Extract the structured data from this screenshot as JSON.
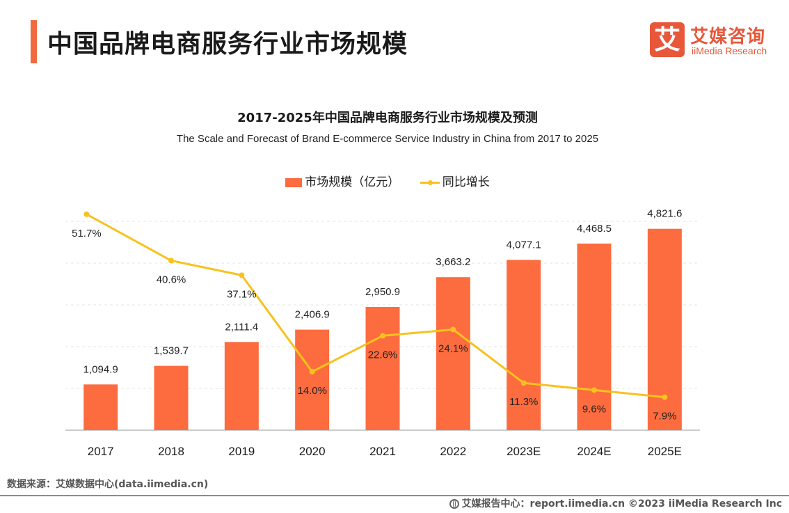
{
  "header": {
    "title": "中国品牌电商服务行业市场规模",
    "logo_mark": "艾",
    "logo_cn": "艾媒咨询",
    "logo_en": "iiMedia Research"
  },
  "chart_data": {
    "type": "bar",
    "title": "2017-2025年中国品牌电商服务行业市场规模及预测",
    "subtitle": "The Scale and Forecast of Brand E-commerce Service Industry in China from 2017 to 2025",
    "categories": [
      "2017",
      "2018",
      "2019",
      "2020",
      "2021",
      "2022",
      "2023E",
      "2024E",
      "2025E"
    ],
    "series": [
      {
        "name": "市场规模（亿元）",
        "type": "bar",
        "axis": "left",
        "color": "#fc6c3f",
        "values": [
          1094.9,
          1539.7,
          2111.4,
          2406.9,
          2950.9,
          3663.2,
          4077.1,
          4468.5,
          4821.6
        ],
        "labels": [
          "1,094.9",
          "1,539.7",
          "2,111.4",
          "2,406.9",
          "2,950.9",
          "3,663.2",
          "4,077.1",
          "4,468.5",
          "4,821.6"
        ]
      },
      {
        "name": "同比增长",
        "type": "line",
        "axis": "right",
        "color": "#f7c21e",
        "values": [
          51.7,
          40.6,
          37.1,
          14.0,
          22.6,
          24.1,
          11.3,
          9.6,
          7.9
        ],
        "labels": [
          "51.7%",
          "40.6%",
          "37.1%",
          "14.0%",
          "22.6%",
          "24.1%",
          "11.3%",
          "9.6%",
          "7.9%"
        ]
      }
    ],
    "ylim_left": [
      0,
      6000
    ],
    "ylim_right": [
      0,
      60
    ],
    "grid": true,
    "legend": "top-center"
  },
  "footer": {
    "source": "数据来源：艾媒数据中心(data.iimedia.cn)",
    "report": "艾媒报告中心：report.iimedia.cn  ©2023  iiMedia Research  Inc"
  }
}
